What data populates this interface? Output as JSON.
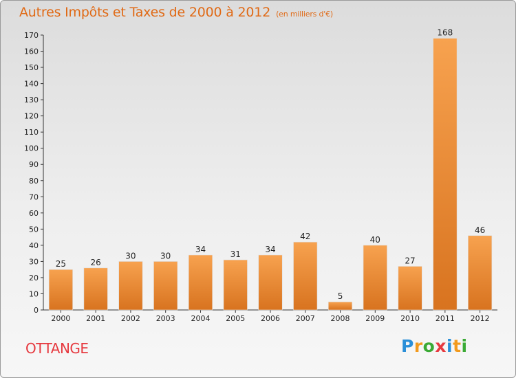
{
  "title": "Autres Impôts et Taxes de 2000 à 2012",
  "subtitle": "(en milliers d'€)",
  "commune": "OTTANGE",
  "logo": {
    "text": "Proxiti",
    "letters": [
      {
        "ch": "P",
        "color": "#2a8fd8"
      },
      {
        "ch": "r",
        "color": "#f29a1d"
      },
      {
        "ch": "o",
        "color": "#3aaa35"
      },
      {
        "ch": "x",
        "color": "#e6393f"
      },
      {
        "ch": "i",
        "color": "#2a8fd8"
      },
      {
        "ch": "t",
        "color": "#f29a1d"
      },
      {
        "ch": "i",
        "color": "#3aaa35"
      }
    ]
  },
  "colors": {
    "title": "#e06a16",
    "bar_top": "#f7a24f",
    "bar_bottom": "#d8731f",
    "commune": "#e6393f",
    "axis": "#333333"
  },
  "chart_data": {
    "type": "bar",
    "categories": [
      "2000",
      "2001",
      "2002",
      "2003",
      "2004",
      "2005",
      "2006",
      "2007",
      "2008",
      "2009",
      "2010",
      "2011",
      "2012"
    ],
    "values": [
      25,
      26,
      30,
      30,
      34,
      31,
      34,
      42,
      5,
      40,
      27,
      168,
      46
    ],
    "ylim": [
      0,
      170
    ],
    "yticks": [
      0,
      10,
      20,
      30,
      40,
      50,
      60,
      70,
      80,
      90,
      100,
      110,
      120,
      130,
      140,
      150,
      160,
      170
    ],
    "grid": false,
    "legend": "none"
  }
}
